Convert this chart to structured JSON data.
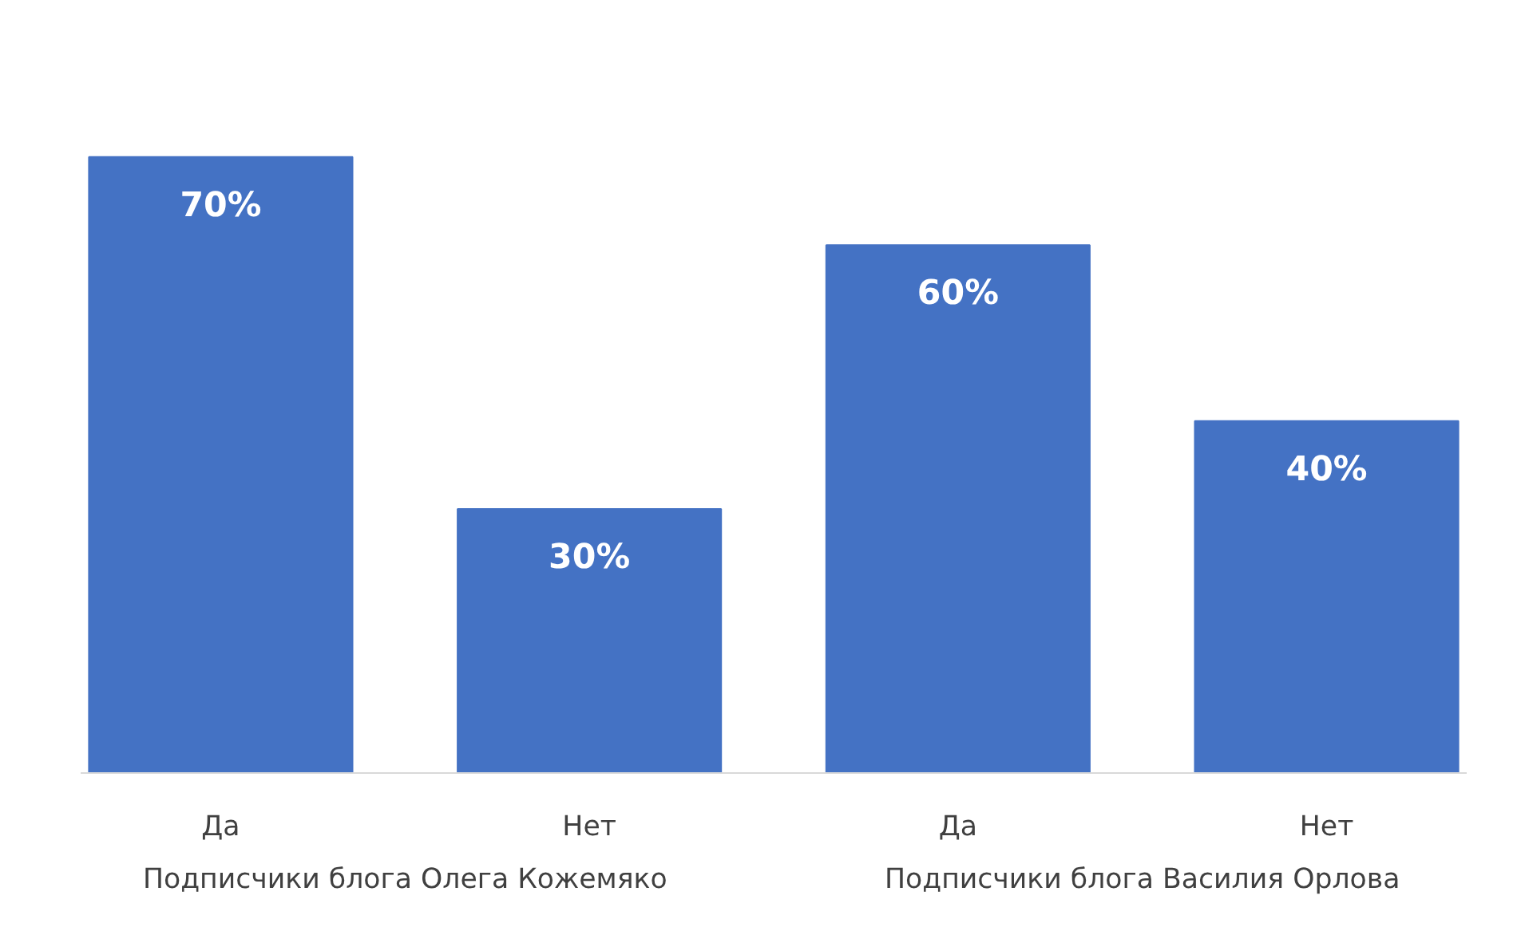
{
  "chart_data": {
    "type": "bar",
    "categories": [
      "Да",
      "Нет",
      "Да",
      "Нет"
    ],
    "values": [
      70,
      30,
      60,
      40
    ],
    "value_labels": [
      "70%",
      "30%",
      "60%",
      "40%"
    ],
    "color": "#4472c4",
    "annotations": [
      "Подписчики блога Олега Кожемяко",
      "Подписчики блога Василия Орлова"
    ],
    "grid": false
  }
}
